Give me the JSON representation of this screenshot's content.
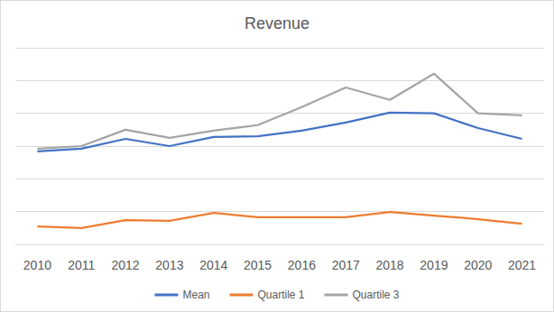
{
  "chart_data": {
    "type": "line",
    "title": "Revenue",
    "categories": [
      "2010",
      "2011",
      "2012",
      "2013",
      "2014",
      "2015",
      "2016",
      "2017",
      "2018",
      "2019",
      "2020",
      "2021"
    ],
    "series": [
      {
        "name": "Mean",
        "color": "#4472c4",
        "marker": "none",
        "line_style": "solid",
        "values": [
          2.84,
          2.92,
          3.22,
          3.0,
          3.28,
          3.3,
          3.47,
          3.72,
          4.02,
          4.0,
          3.55,
          3.22
        ]
      },
      {
        "name": "Quartile 1",
        "color": "#ed7d31",
        "marker": "none",
        "line_style": "solid",
        "values": [
          0.55,
          0.5,
          0.74,
          0.72,
          0.96,
          0.83,
          0.83,
          0.83,
          0.99,
          0.88,
          0.77,
          0.63
        ]
      },
      {
        "name": "Quartile 3",
        "color": "#a5a5a5",
        "marker": "none",
        "line_style": "solid",
        "values": [
          2.92,
          3.0,
          3.5,
          3.25,
          3.47,
          3.64,
          4.19,
          4.79,
          4.41,
          5.21,
          4.0,
          3.94
        ]
      }
    ],
    "ylim": [
      0,
      6
    ],
    "yticks": [
      0,
      1,
      2,
      3,
      4,
      5,
      6
    ],
    "grid": true,
    "legend": "bottom",
    "tick_labels": "x"
  }
}
